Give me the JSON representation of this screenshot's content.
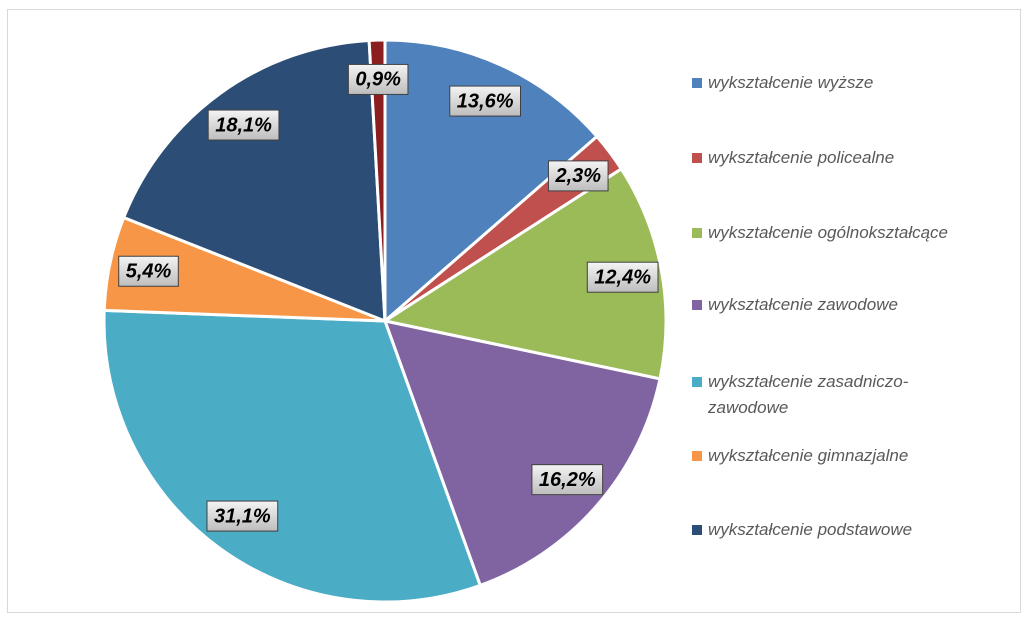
{
  "chart_data": {
    "type": "pie",
    "categories": [
      "wykształcenie wyższe",
      "wykształcenie policealne",
      "wykształcenie ogólnokształcące",
      "wykształcenie zawodowe",
      "wykształcenie zasadniczo-zawodowe",
      "wykształcenie gimnazjalne",
      "wykształcenie podstawowe",
      null
    ],
    "values": [
      13.6,
      2.3,
      12.4,
      16.2,
      31.1,
      5.4,
      18.1,
      0.9
    ],
    "value_labels": [
      "13,6%",
      "2,3%",
      "12,4%",
      "16,2%",
      "31,1%",
      "5,4%",
      "18,1%",
      "0,9%"
    ],
    "colors": [
      "#4f81bd",
      "#c0504d",
      "#9bbb59",
      "#8064a2",
      "#4bacc6",
      "#f79646",
      "#2c4d75",
      "#8b1e1e"
    ],
    "legend": "right"
  }
}
